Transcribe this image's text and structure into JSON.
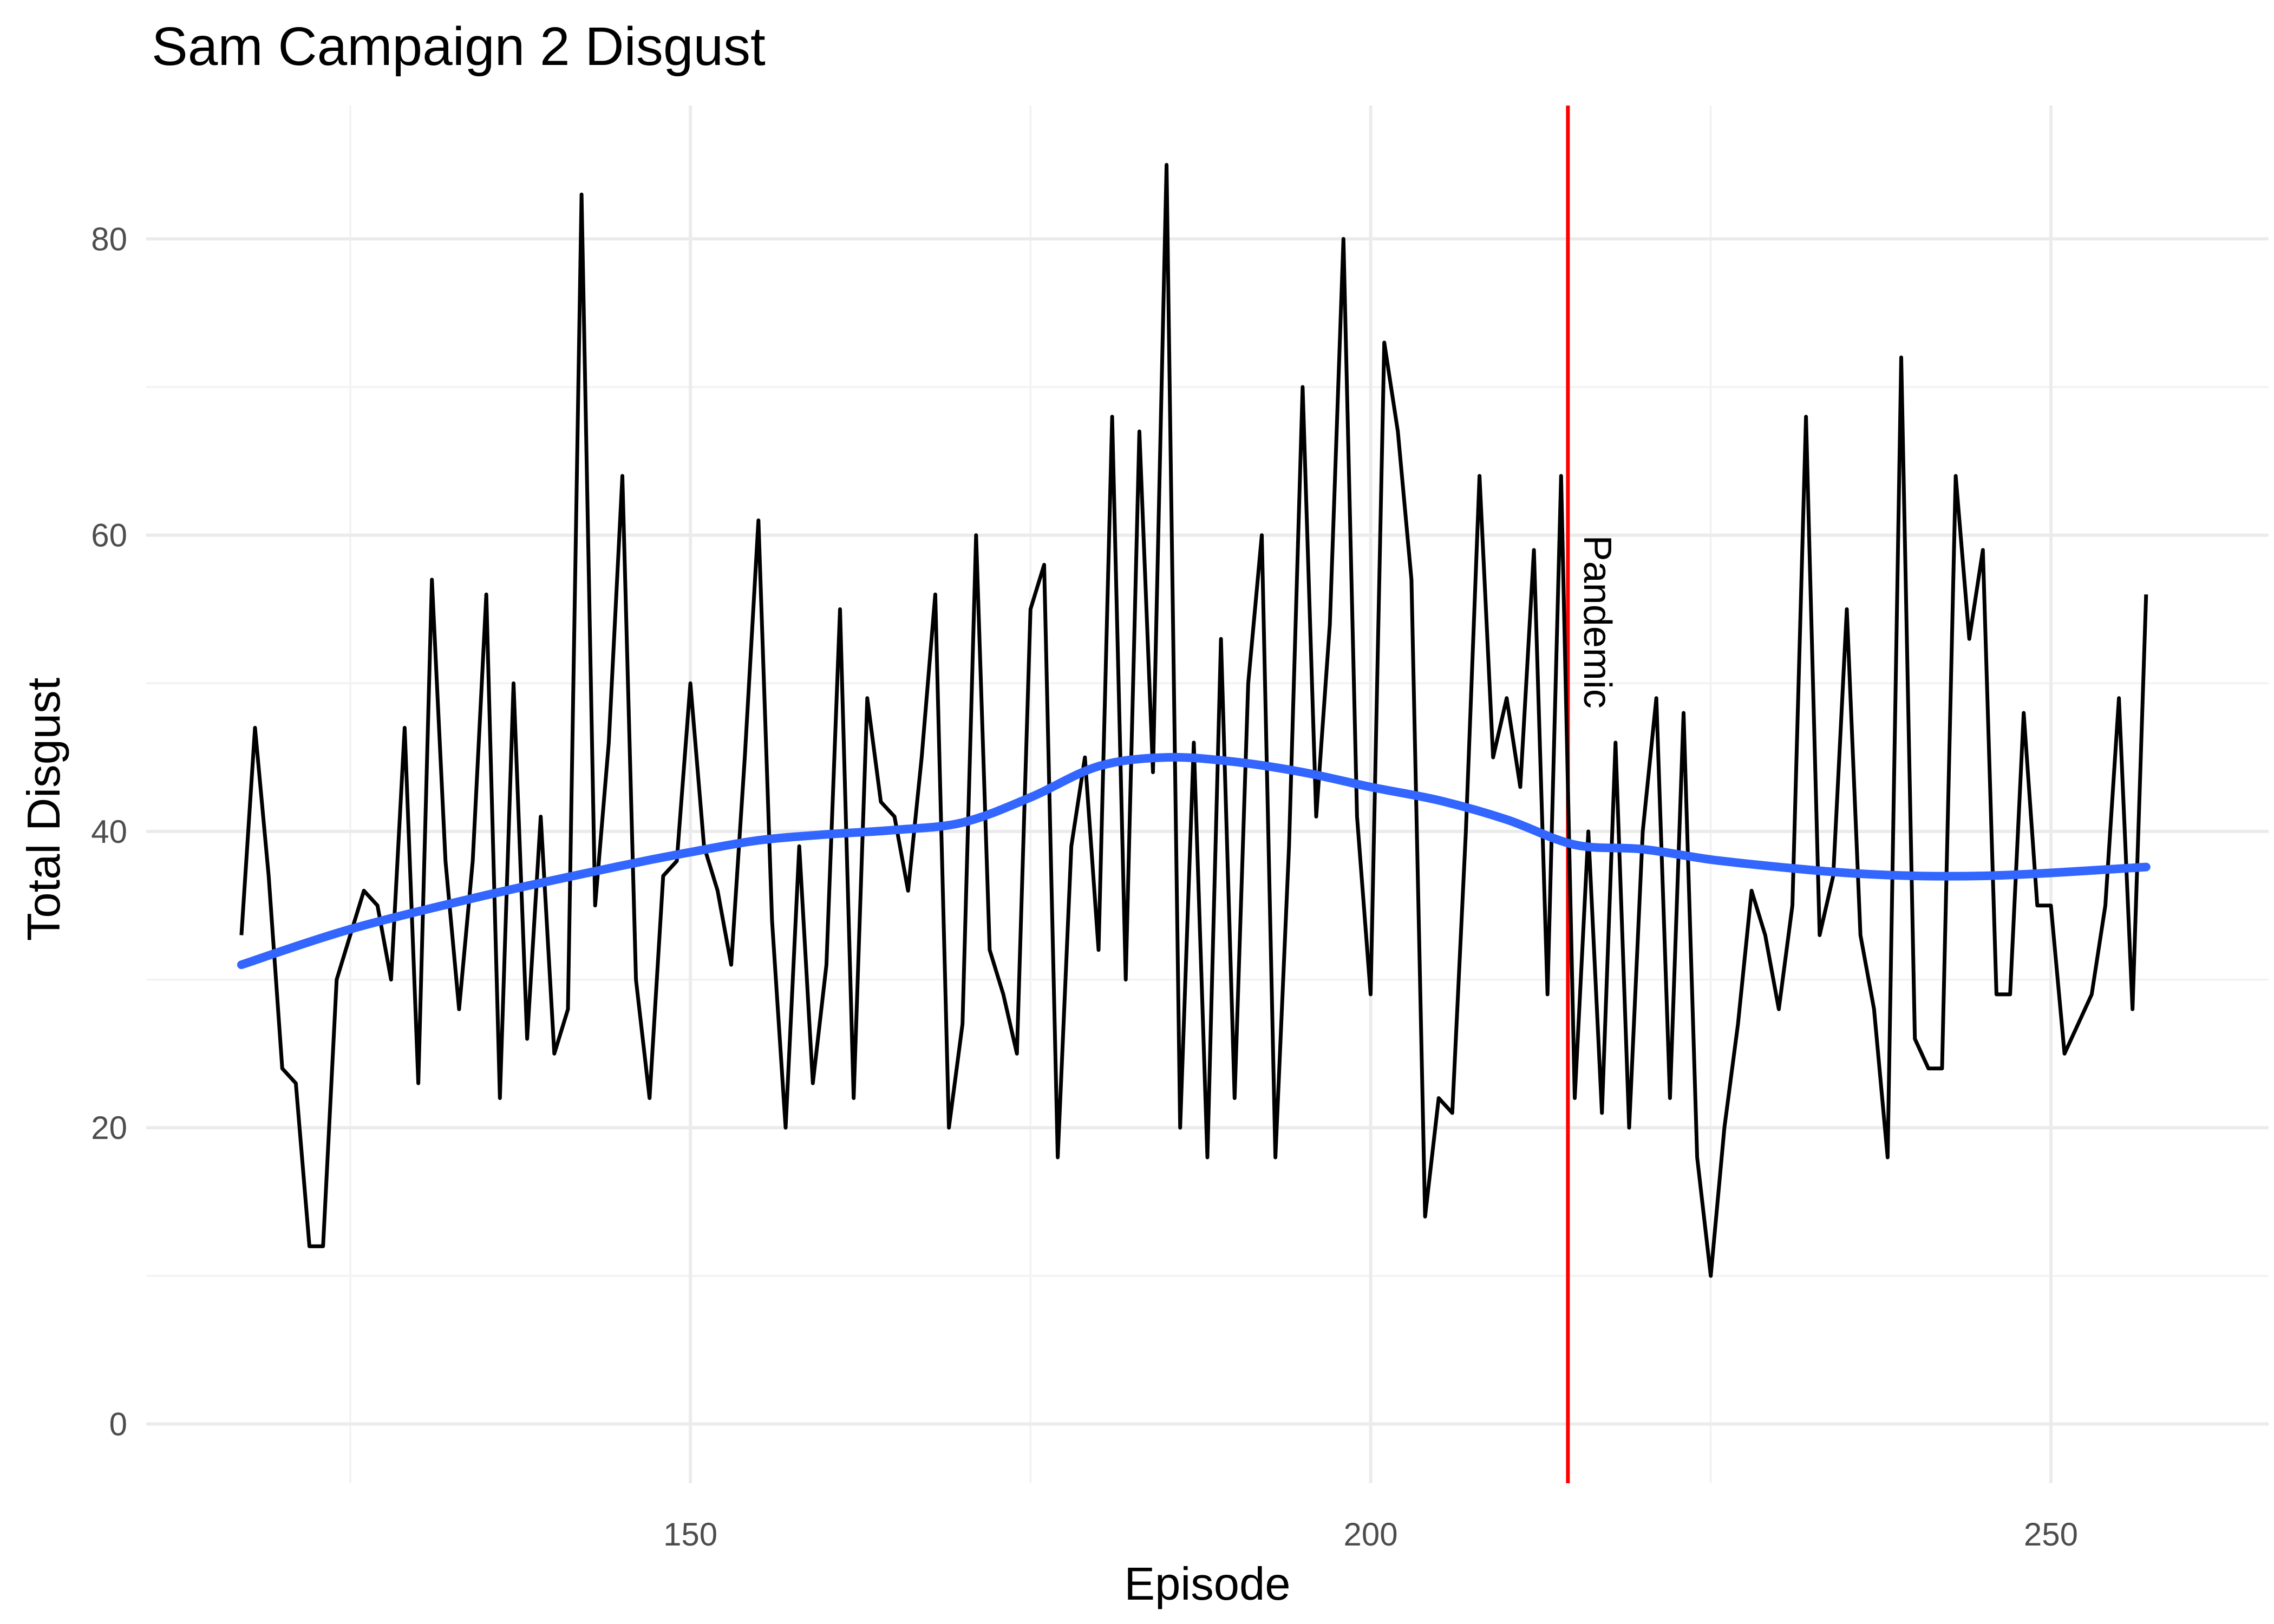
{
  "chart_data": {
    "type": "line",
    "title": "Sam Campaign 2 Disgust",
    "xlabel": "Episode",
    "ylabel": "Total Disgust",
    "xlim": [
      110,
      266
    ],
    "ylim": [
      -4,
      89
    ],
    "x_ticks": [
      150,
      200,
      250
    ],
    "y_ticks": [
      0,
      20,
      40,
      60,
      80
    ],
    "x_tick_labels": [
      "150",
      "200",
      "250"
    ],
    "y_tick_labels": [
      "0",
      "20",
      "40",
      "60",
      "80"
    ],
    "grid": true,
    "legend": "none",
    "colors": {
      "series": "#000000",
      "smooth": "#3366ff",
      "vline": "#ff0000",
      "grid": "#ebebeb"
    },
    "series": [
      {
        "x": [
          117,
          118,
          119,
          120,
          121,
          122,
          123,
          124,
          125,
          126,
          127,
          128,
          129,
          130,
          131,
          132,
          133,
          134,
          135,
          136,
          137,
          138,
          139,
          140,
          141,
          142,
          143,
          144,
          145,
          146,
          147,
          148,
          149,
          150,
          151,
          152,
          153,
          154,
          155,
          156,
          157,
          158,
          159,
          160,
          161,
          162,
          163,
          164,
          165,
          166,
          167,
          168,
          169,
          170,
          171,
          172,
          173,
          174,
          175,
          176,
          177,
          178,
          179,
          180,
          181,
          182,
          183,
          184,
          185,
          186,
          187,
          188,
          189,
          190,
          191,
          192,
          193,
          194,
          195,
          196,
          197,
          198,
          199,
          200,
          201,
          202,
          203,
          204,
          205,
          206,
          207,
          208,
          209,
          210,
          211,
          212,
          213,
          214,
          215,
          216,
          217,
          218,
          219,
          220,
          221,
          222,
          223,
          224,
          225,
          226,
          227,
          228,
          229,
          230,
          231,
          232,
          233,
          234,
          235,
          236,
          237,
          238,
          239,
          240,
          241,
          242,
          243,
          244,
          245,
          246,
          247,
          248,
          249,
          250,
          251,
          252,
          253,
          254,
          255,
          256,
          257
        ],
        "values": [
          33,
          47,
          37,
          24,
          23,
          12,
          12,
          30,
          33,
          36,
          35,
          30,
          47,
          23,
          57,
          38,
          28,
          38,
          56,
          22,
          50,
          26,
          41,
          25,
          28,
          83,
          35,
          46,
          64,
          30,
          22,
          37,
          38,
          50,
          39,
          36,
          31,
          45,
          61,
          34,
          20,
          39,
          23,
          31,
          55,
          22,
          49,
          42,
          41,
          36,
          45,
          56,
          20,
          27,
          60,
          32,
          29,
          25,
          55,
          58,
          18,
          39,
          45,
          32,
          68,
          30,
          67,
          44,
          85,
          20,
          46,
          18,
          53,
          22,
          50,
          60,
          18,
          39,
          70,
          41,
          54,
          80,
          41,
          29,
          73,
          67,
          57,
          14,
          22,
          21,
          40,
          64,
          45,
          49,
          43,
          59,
          29,
          64,
          22,
          40,
          21,
          46,
          20,
          40,
          49,
          22,
          48,
          18,
          10,
          20,
          27,
          36,
          33,
          28,
          35,
          68,
          33,
          37,
          55,
          33,
          28,
          18,
          72,
          26,
          24,
          24,
          64,
          53,
          59,
          29,
          29,
          48,
          35,
          35,
          25,
          27,
          29,
          35,
          49,
          28,
          56
        ]
      },
      {
        "x": [
          117,
          125,
          135,
          145,
          150,
          155,
          160,
          165,
          170,
          175,
          180,
          185,
          190,
          195,
          200,
          205,
          210,
          215,
          220,
          225,
          230,
          235,
          240,
          245,
          250,
          257
        ],
        "values": [
          31,
          33.4,
          35.7,
          37.7,
          38.6,
          39.4,
          39.8,
          40.1,
          40.6,
          42.3,
          44.4,
          45,
          44.7,
          44,
          43,
          42.1,
          40.8,
          39.1,
          38.8,
          38.1,
          37.6,
          37.2,
          37,
          37,
          37.2,
          37.6
        ]
      }
    ],
    "annotations": [
      {
        "x": 214.5,
        "label": "Pandemic"
      }
    ]
  }
}
